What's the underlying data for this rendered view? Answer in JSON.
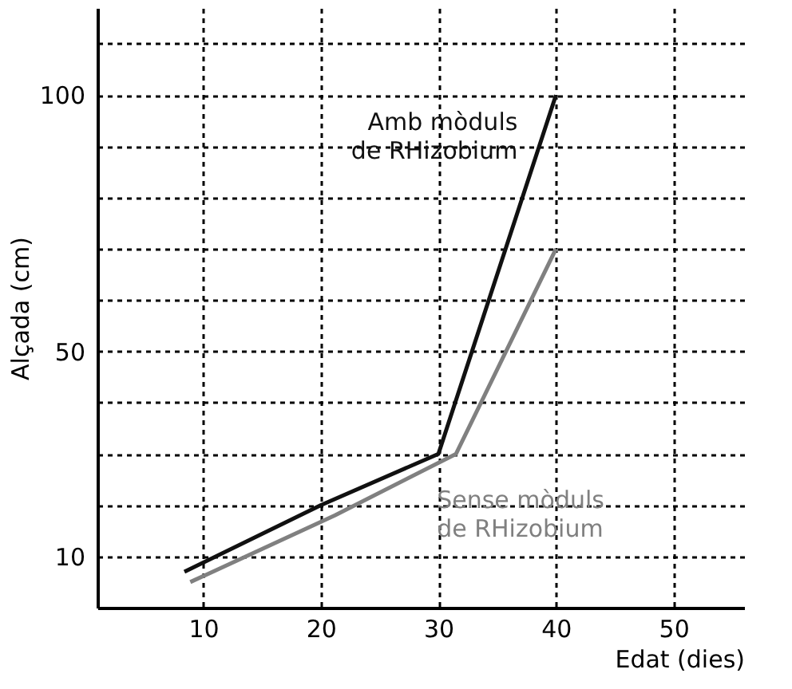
{
  "chart_data": {
    "type": "line",
    "xlabel": "Edat (dies)",
    "ylabel": "Alçada (cm)",
    "xlim": [
      1,
      56
    ],
    "xticks": [
      10,
      20,
      30,
      40,
      50
    ],
    "ylim": [
      0,
      117
    ],
    "yticks": [
      10,
      {
        "value": 20,
        "label": null
      },
      {
        "value": 30,
        "label": null
      },
      {
        "value": 40,
        "label": null
      },
      50,
      {
        "value": 60,
        "label": null
      },
      {
        "value": 70,
        "label": null
      },
      {
        "value": 80,
        "label": null
      },
      {
        "value": 90,
        "label": null
      },
      100,
      {
        "value": 110,
        "label": null
      }
    ],
    "grid": true,
    "legend": false,
    "marker": "none",
    "line_style": "solid",
    "series": [
      {
        "name": "Amb mòduls\nde RHizobium",
        "color": "#111111",
        "x": [
          8.4,
          20,
          30,
          40
        ],
        "values": [
          7,
          20,
          30,
          100
        ]
      },
      {
        "name": "Sense mòduls\nde RHizobium",
        "color": "#808080",
        "x": [
          8.9,
          21.2,
          31.5,
          40
        ],
        "values": [
          5,
          18,
          30,
          70
        ]
      }
    ]
  }
}
